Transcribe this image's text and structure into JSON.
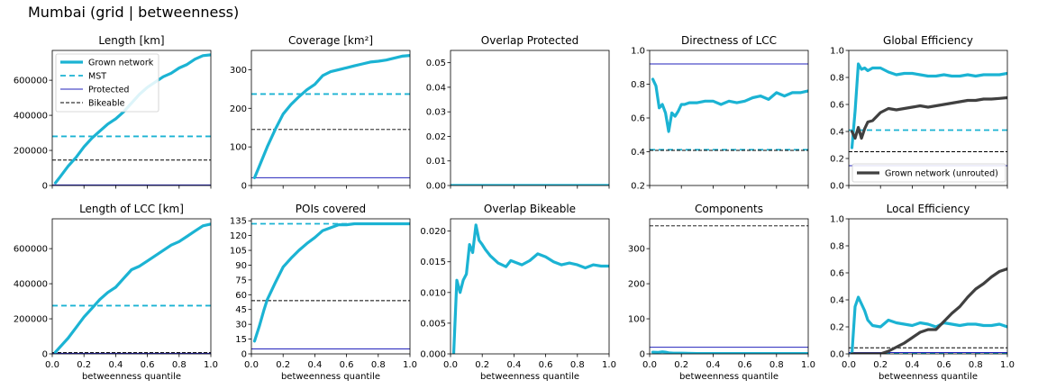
{
  "figure_title": "Mumbai (grid | betweenness)",
  "colors": {
    "grown": "#1bb3d3",
    "unrouted": "#404040",
    "mst": "#1bb3d3",
    "protected": "#2222bb",
    "bikeable": "#000000"
  },
  "legend_main": [
    {
      "label": "Grown network",
      "style": "grown"
    },
    {
      "label": "MST",
      "style": "mst"
    },
    {
      "label": "Protected",
      "style": "protected"
    },
    {
      "label": "Bikeable",
      "style": "bikeable"
    }
  ],
  "legend_unrouted": {
    "label": "Grown network (unrouted)",
    "style": "unrouted"
  },
  "chart_data": [
    {
      "id": "length",
      "title": "Length [km]",
      "type": "line",
      "xlim": [
        0,
        1
      ],
      "ylim": [
        0,
        770000
      ],
      "yticks": [
        0,
        200000,
        400000,
        600000
      ],
      "ytick_labels": [
        "0",
        "200000",
        "400000",
        "600000"
      ],
      "xlabel": "",
      "show_xticklabels": false,
      "series": [
        {
          "style": "grown",
          "x": [
            0.02,
            0.05,
            0.1,
            0.15,
            0.2,
            0.25,
            0.3,
            0.35,
            0.4,
            0.45,
            0.5,
            0.55,
            0.6,
            0.65,
            0.7,
            0.75,
            0.8,
            0.85,
            0.9,
            0.95,
            1.0
          ],
          "y": [
            15000,
            50000,
            110000,
            160000,
            220000,
            270000,
            310000,
            350000,
            380000,
            420000,
            470000,
            520000,
            560000,
            590000,
            620000,
            640000,
            670000,
            690000,
            720000,
            740000,
            745000
          ]
        }
      ],
      "hlines": [
        {
          "style": "mst",
          "y": 280000
        },
        {
          "style": "protected",
          "y": 3000
        },
        {
          "style": "bikeable",
          "y": 145000
        }
      ]
    },
    {
      "id": "coverage",
      "title": "Coverage [km²]",
      "type": "line",
      "xlim": [
        0,
        1
      ],
      "ylim": [
        0,
        350
      ],
      "yticks": [
        0,
        100,
        200,
        300
      ],
      "ytick_labels": [
        "0",
        "100",
        "200",
        "300"
      ],
      "xlabel": "",
      "show_xticklabels": false,
      "series": [
        {
          "style": "grown",
          "x": [
            0.02,
            0.05,
            0.1,
            0.15,
            0.2,
            0.25,
            0.3,
            0.35,
            0.4,
            0.45,
            0.5,
            0.55,
            0.6,
            0.65,
            0.7,
            0.75,
            0.8,
            0.85,
            0.9,
            0.95,
            1.0
          ],
          "y": [
            20,
            50,
            100,
            145,
            185,
            210,
            230,
            248,
            262,
            285,
            295,
            300,
            305,
            310,
            315,
            320,
            322,
            325,
            330,
            335,
            337
          ]
        }
      ],
      "hlines": [
        {
          "style": "mst",
          "y": 237
        },
        {
          "style": "protected",
          "y": 20
        },
        {
          "style": "bikeable",
          "y": 145
        }
      ]
    },
    {
      "id": "overlap-protected",
      "title": "Overlap Protected",
      "type": "line",
      "xlim": [
        0,
        1
      ],
      "ylim": [
        0,
        0.055
      ],
      "yticks": [
        0,
        0.01,
        0.02,
        0.03,
        0.04,
        0.05
      ],
      "ytick_labels": [
        "0.00",
        "0.01",
        "0.02",
        "0.03",
        "0.04",
        "0.05"
      ],
      "xlabel": "",
      "show_xticklabels": false,
      "series": [
        {
          "style": "grown",
          "x": [
            0,
            1
          ],
          "y": [
            0,
            0
          ]
        }
      ],
      "hlines": []
    },
    {
      "id": "directness-lcc",
      "title": "Directness of LCC",
      "type": "line",
      "xlim": [
        0,
        1
      ],
      "ylim": [
        0.2,
        1.0
      ],
      "yticks": [
        0.2,
        0.4,
        0.6,
        0.8,
        1.0
      ],
      "ytick_labels": [
        "0.2",
        "0.4",
        "0.6",
        "0.8",
        "1.0"
      ],
      "xlabel": "",
      "show_xticklabels": false,
      "series": [
        {
          "style": "grown",
          "x": [
            0.02,
            0.04,
            0.06,
            0.08,
            0.1,
            0.12,
            0.14,
            0.16,
            0.18,
            0.2,
            0.22,
            0.25,
            0.3,
            0.35,
            0.38,
            0.4,
            0.45,
            0.5,
            0.55,
            0.6,
            0.65,
            0.7,
            0.75,
            0.8,
            0.85,
            0.9,
            0.95,
            1.0
          ],
          "y": [
            0.83,
            0.79,
            0.66,
            0.68,
            0.63,
            0.52,
            0.63,
            0.61,
            0.64,
            0.68,
            0.68,
            0.69,
            0.69,
            0.7,
            0.7,
            0.7,
            0.68,
            0.7,
            0.69,
            0.7,
            0.72,
            0.73,
            0.71,
            0.75,
            0.73,
            0.75,
            0.75,
            0.76
          ]
        }
      ],
      "hlines": [
        {
          "style": "mst",
          "y": 0.412
        },
        {
          "style": "protected",
          "y": 0.92
        },
        {
          "style": "bikeable",
          "y": 0.408
        }
      ]
    },
    {
      "id": "global-efficiency",
      "title": "Global Efficiency",
      "type": "line",
      "xlim": [
        0,
        1
      ],
      "ylim": [
        0,
        1.0
      ],
      "yticks": [
        0,
        0.2,
        0.4,
        0.6,
        0.8,
        1.0
      ],
      "ytick_labels": [
        "0.0",
        "0.2",
        "0.4",
        "0.6",
        "0.8",
        "1.0"
      ],
      "xlabel": "",
      "show_xticklabels": false,
      "series": [
        {
          "style": "grown",
          "x": [
            0.02,
            0.04,
            0.06,
            0.08,
            0.1,
            0.12,
            0.15,
            0.2,
            0.25,
            0.3,
            0.35,
            0.4,
            0.45,
            0.5,
            0.55,
            0.6,
            0.65,
            0.7,
            0.75,
            0.8,
            0.85,
            0.9,
            0.95,
            1.0
          ],
          "y": [
            0.28,
            0.55,
            0.9,
            0.86,
            0.87,
            0.85,
            0.87,
            0.87,
            0.84,
            0.82,
            0.83,
            0.83,
            0.82,
            0.81,
            0.81,
            0.82,
            0.81,
            0.81,
            0.82,
            0.81,
            0.82,
            0.82,
            0.82,
            0.83
          ]
        },
        {
          "style": "unrouted",
          "x": [
            0.02,
            0.04,
            0.06,
            0.08,
            0.1,
            0.12,
            0.15,
            0.2,
            0.25,
            0.3,
            0.35,
            0.4,
            0.45,
            0.5,
            0.55,
            0.6,
            0.65,
            0.7,
            0.75,
            0.8,
            0.85,
            0.9,
            0.95,
            1.0
          ],
          "y": [
            0.4,
            0.35,
            0.43,
            0.35,
            0.42,
            0.47,
            0.48,
            0.54,
            0.57,
            0.56,
            0.57,
            0.58,
            0.59,
            0.58,
            0.59,
            0.6,
            0.61,
            0.62,
            0.63,
            0.63,
            0.64,
            0.64,
            0.645,
            0.65
          ]
        }
      ],
      "hlines": [
        {
          "style": "mst",
          "y": 0.41
        },
        {
          "style": "protected",
          "y": 0.147
        },
        {
          "style": "bikeable",
          "y": 0.25
        }
      ],
      "legend": "unrouted"
    },
    {
      "id": "length-lcc",
      "title": "Length of LCC [km]",
      "type": "line",
      "xlim": [
        0,
        1
      ],
      "ylim": [
        0,
        770000
      ],
      "yticks": [
        0,
        200000,
        400000,
        600000
      ],
      "ytick_labels": [
        "0",
        "200000",
        "400000",
        "600000"
      ],
      "xlabel": "betweenness quantile",
      "show_xticklabels": true,
      "series": [
        {
          "style": "grown",
          "x": [
            0.02,
            0.05,
            0.1,
            0.15,
            0.2,
            0.25,
            0.3,
            0.35,
            0.4,
            0.45,
            0.5,
            0.55,
            0.6,
            0.65,
            0.7,
            0.75,
            0.8,
            0.85,
            0.9,
            0.95,
            1.0
          ],
          "y": [
            10000,
            40000,
            90000,
            150000,
            210000,
            260000,
            310000,
            350000,
            380000,
            430000,
            480000,
            500000,
            530000,
            560000,
            590000,
            620000,
            640000,
            670000,
            700000,
            730000,
            740000
          ]
        }
      ],
      "hlines": [
        {
          "style": "mst",
          "y": 275000
        },
        {
          "style": "protected",
          "y": 3000
        },
        {
          "style": "bikeable",
          "y": 8000
        }
      ]
    },
    {
      "id": "pois-covered",
      "title": "POIs covered",
      "type": "line",
      "xlim": [
        0,
        1
      ],
      "ylim": [
        0,
        137
      ],
      "yticks": [
        0,
        15,
        30,
        45,
        60,
        75,
        90,
        105,
        120,
        135
      ],
      "ytick_labels": [
        "0",
        "15",
        "30",
        "45",
        "60",
        "75",
        "90",
        "105",
        "120",
        "135"
      ],
      "xlabel": "betweenness quantile",
      "show_xticklabels": true,
      "series": [
        {
          "style": "grown",
          "x": [
            0.02,
            0.05,
            0.08,
            0.1,
            0.15,
            0.2,
            0.25,
            0.3,
            0.35,
            0.4,
            0.45,
            0.5,
            0.55,
            0.6,
            0.65,
            0.7,
            0.8,
            0.9,
            1.0
          ],
          "y": [
            13,
            28,
            45,
            55,
            72,
            88,
            97,
            105,
            112,
            118,
            125,
            128,
            131,
            131,
            132,
            132,
            132,
            132,
            132
          ]
        }
      ],
      "hlines": [
        {
          "style": "mst",
          "y": 132
        },
        {
          "style": "protected",
          "y": 5
        },
        {
          "style": "bikeable",
          "y": 54
        }
      ]
    },
    {
      "id": "overlap-bikeable",
      "title": "Overlap Bikeable",
      "type": "line",
      "xlim": [
        0,
        1
      ],
      "ylim": [
        0,
        0.022
      ],
      "yticks": [
        0,
        0.005,
        0.01,
        0.015,
        0.02
      ],
      "ytick_labels": [
        "0.000",
        "0.005",
        "0.010",
        "0.015",
        "0.020"
      ],
      "xlabel": "betweenness quantile",
      "show_xticklabels": true,
      "series": [
        {
          "style": "grown",
          "x": [
            0.02,
            0.04,
            0.06,
            0.08,
            0.1,
            0.12,
            0.14,
            0.16,
            0.18,
            0.2,
            0.22,
            0.25,
            0.3,
            0.35,
            0.38,
            0.4,
            0.45,
            0.5,
            0.55,
            0.6,
            0.65,
            0.7,
            0.75,
            0.8,
            0.85,
            0.9,
            0.95,
            1.0
          ],
          "y": [
            0,
            0.012,
            0.01,
            0.012,
            0.013,
            0.0178,
            0.0165,
            0.021,
            0.0185,
            0.0178,
            0.017,
            0.016,
            0.0148,
            0.0142,
            0.0152,
            0.015,
            0.0145,
            0.0152,
            0.0163,
            0.0158,
            0.015,
            0.0145,
            0.0148,
            0.0145,
            0.014,
            0.0145,
            0.0143,
            0.0143
          ]
        }
      ],
      "hlines": []
    },
    {
      "id": "components",
      "title": "Components",
      "type": "line",
      "xlim": [
        0,
        1
      ],
      "ylim": [
        0,
        385
      ],
      "yticks": [
        0,
        100,
        200,
        300
      ],
      "ytick_labels": [
        "0",
        "100",
        "200",
        "300"
      ],
      "xlabel": "betweenness quantile",
      "show_xticklabels": true,
      "series": [
        {
          "style": "grown",
          "x": [
            0.02,
            0.05,
            0.08,
            0.1,
            0.12,
            0.15,
            0.2,
            0.3,
            0.5,
            0.7,
            1.0
          ],
          "y": [
            5,
            4,
            6,
            5,
            3,
            2,
            2,
            1,
            1,
            1,
            1
          ]
        }
      ],
      "hlines": [
        {
          "style": "protected",
          "y": 19
        },
        {
          "style": "bikeable",
          "y": 365
        }
      ]
    },
    {
      "id": "local-efficiency",
      "title": "Local Efficiency",
      "type": "line",
      "xlim": [
        0,
        1
      ],
      "ylim": [
        0,
        1.0
      ],
      "yticks": [
        0,
        0.2,
        0.4,
        0.6,
        0.8,
        1.0
      ],
      "ytick_labels": [
        "0.0",
        "0.2",
        "0.4",
        "0.6",
        "0.8",
        "1.0"
      ],
      "xlabel": "betweenness quantile",
      "show_xticklabels": true,
      "series": [
        {
          "style": "grown",
          "x": [
            0.02,
            0.04,
            0.06,
            0.08,
            0.1,
            0.12,
            0.15,
            0.2,
            0.25,
            0.3,
            0.35,
            0.4,
            0.45,
            0.5,
            0.55,
            0.6,
            0.65,
            0.7,
            0.75,
            0.8,
            0.85,
            0.9,
            0.95,
            1.0
          ],
          "y": [
            0,
            0.35,
            0.42,
            0.37,
            0.32,
            0.25,
            0.21,
            0.2,
            0.25,
            0.23,
            0.22,
            0.21,
            0.23,
            0.22,
            0.2,
            0.23,
            0.22,
            0.21,
            0.22,
            0.22,
            0.21,
            0.21,
            0.22,
            0.2
          ]
        },
        {
          "style": "unrouted",
          "x": [
            0.02,
            0.1,
            0.2,
            0.25,
            0.3,
            0.35,
            0.4,
            0.45,
            0.5,
            0.55,
            0.6,
            0.65,
            0.7,
            0.75,
            0.8,
            0.85,
            0.9,
            0.95,
            1.0
          ],
          "y": [
            0,
            0,
            0,
            0.02,
            0.05,
            0.08,
            0.12,
            0.16,
            0.18,
            0.18,
            0.24,
            0.3,
            0.35,
            0.42,
            0.48,
            0.52,
            0.57,
            0.61,
            0.63
          ]
        }
      ],
      "hlines": [
        {
          "style": "mst",
          "y": 0.005
        },
        {
          "style": "protected",
          "y": 0.01
        },
        {
          "style": "bikeable",
          "y": 0.045
        }
      ]
    }
  ]
}
